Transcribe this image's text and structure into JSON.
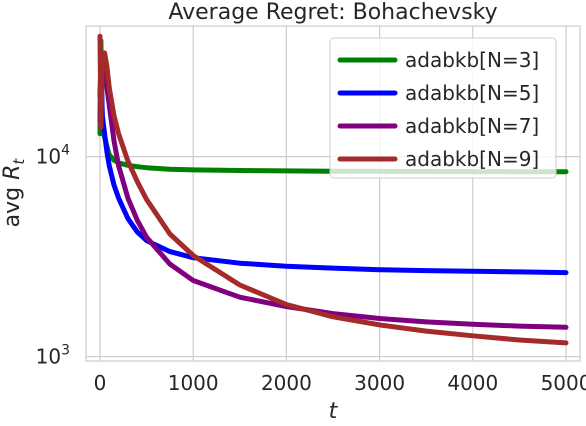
{
  "chart_data": {
    "type": "line",
    "title": "Average Regret: Bohachevsky",
    "xlabel": "t",
    "ylabel_prefix": "avg ",
    "ylabel_var": "R",
    "ylabel_sub": "t",
    "xlim": [
      -150,
      5150
    ],
    "ylim": [
      950,
      45000
    ],
    "yscale": "log",
    "x_ticks": [
      0,
      1000,
      2000,
      3000,
      4000,
      5000
    ],
    "y_ticks": [
      {
        "value": 1000,
        "base": "10",
        "exp": "3"
      },
      {
        "value": 10000,
        "base": "10",
        "exp": "4"
      }
    ],
    "grid": true,
    "legend_position": "top-right",
    "series": [
      {
        "name": "adabkb[N=3]",
        "color": "#008000",
        "x": [
          0,
          10,
          25,
          40,
          60,
          80,
          100,
          150,
          200,
          300,
          400,
          500,
          750,
          1000,
          1500,
          2000,
          2500,
          3000,
          3500,
          4000,
          4500,
          5000
        ],
        "y": [
          13000,
          38000,
          15000,
          13000,
          12000,
          11000,
          10200,
          9600,
          9300,
          9050,
          8900,
          8800,
          8650,
          8580,
          8520,
          8480,
          8450,
          8430,
          8420,
          8410,
          8405,
          8400
        ]
      },
      {
        "name": "adabkb[N=5]",
        "color": "#0000ff",
        "x": [
          0,
          10,
          25,
          50,
          75,
          100,
          150,
          200,
          300,
          400,
          500,
          750,
          1000,
          1500,
          2000,
          2500,
          3000,
          3500,
          4000,
          4500,
          5000
        ],
        "y": [
          20000,
          30000,
          16000,
          13000,
          10500,
          9000,
          7200,
          6200,
          4900,
          4200,
          3800,
          3350,
          3120,
          2930,
          2830,
          2770,
          2720,
          2690,
          2670,
          2650,
          2630
        ]
      },
      {
        "name": "adabkb[N=7]",
        "color": "#800080",
        "x": [
          0,
          10,
          25,
          50,
          75,
          100,
          150,
          200,
          300,
          400,
          500,
          750,
          1000,
          1500,
          2000,
          2500,
          3000,
          3500,
          4000,
          4500,
          5000
        ],
        "y": [
          15000,
          32000,
          30000,
          26000,
          22000,
          18000,
          12000,
          9000,
          6200,
          4800,
          3950,
          2900,
          2400,
          1980,
          1780,
          1640,
          1550,
          1490,
          1450,
          1420,
          1400
        ]
      },
      {
        "name": "adabkb[N=9]",
        "color": "#a52a2a",
        "x": [
          0,
          10,
          25,
          50,
          75,
          100,
          150,
          200,
          300,
          400,
          500,
          750,
          1000,
          1500,
          2000,
          2500,
          3000,
          3500,
          4000,
          4500,
          5000
        ],
        "y": [
          40000,
          14000,
          30000,
          33000,
          28000,
          22000,
          16000,
          13000,
          9500,
          7500,
          6100,
          4100,
          3200,
          2280,
          1820,
          1580,
          1440,
          1340,
          1270,
          1210,
          1170
        ]
      }
    ]
  }
}
